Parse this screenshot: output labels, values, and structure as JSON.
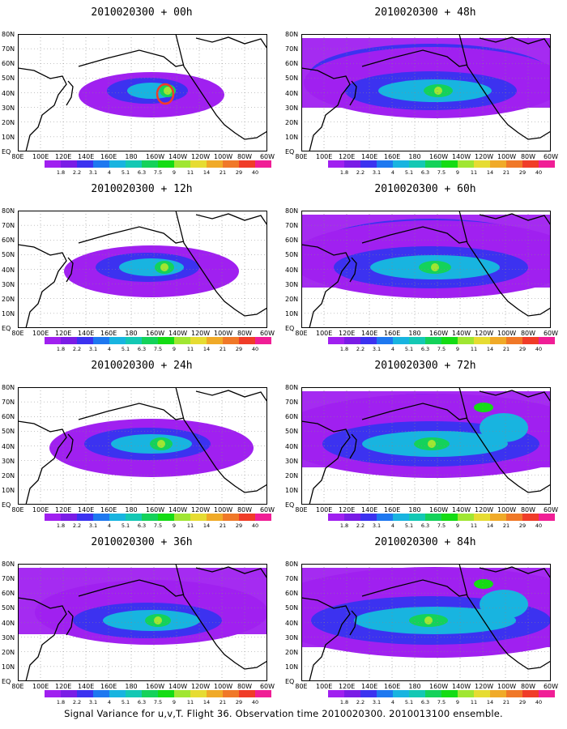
{
  "panels": [
    {
      "title": "2010020300 + 00h",
      "level": 0
    },
    {
      "title": "2010020300 + 48h",
      "level": 4
    },
    {
      "title": "2010020300 + 12h",
      "level": 1
    },
    {
      "title": "2010020300 + 60h",
      "level": 5
    },
    {
      "title": "2010020300 + 24h",
      "level": 2
    },
    {
      "title": "2010020300 + 72h",
      "level": 6
    },
    {
      "title": "2010020300 + 36h",
      "level": 3
    },
    {
      "title": "2010020300 + 84h",
      "level": 7
    }
  ],
  "axes": {
    "lat_labels": [
      "80N",
      "70N",
      "60N",
      "50N",
      "40N",
      "30N",
      "20N",
      "10N",
      "EQ"
    ],
    "lon_labels": [
      "80E",
      "100E",
      "120E",
      "140E",
      "160E",
      "180",
      "160W",
      "140W",
      "120W",
      "100W",
      "80W",
      "60W"
    ]
  },
  "colorbar": {
    "labels": [
      "1.8",
      "2.2",
      "3.1",
      "4",
      "5.1",
      "6.3",
      "7.5",
      "9",
      "11",
      "14",
      "21",
      "29",
      "40"
    ],
    "colors": [
      "#a020f0",
      "#7a1ce6",
      "#3c32f0",
      "#1e78f0",
      "#18b4e0",
      "#14c8b4",
      "#14d25a",
      "#14dc14",
      "#a0e632",
      "#e6dc32",
      "#f0aa28",
      "#f07828",
      "#f03c28",
      "#f01e96"
    ]
  },
  "caption": "Signal Variance for u,v,T. Flight 36. Observation time 2010020300. 2010013100 ensemble."
}
